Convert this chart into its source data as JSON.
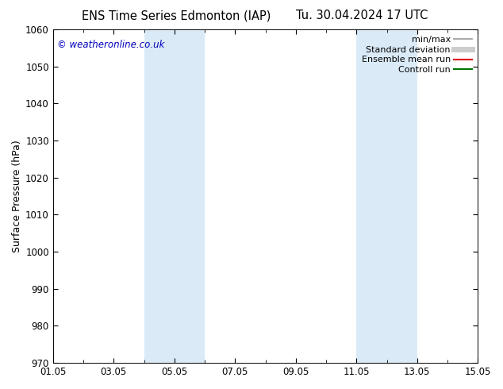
{
  "title_left": "ENS Time Series Edmonton (IAP)",
  "title_right": "Tu. 30.04.2024 17 UTC",
  "ylabel": "Surface Pressure (hPa)",
  "ylim": [
    970,
    1060
  ],
  "yticks": [
    970,
    980,
    990,
    1000,
    1010,
    1020,
    1030,
    1040,
    1050,
    1060
  ],
  "xtick_labels": [
    "01.05",
    "03.05",
    "05.05",
    "07.05",
    "09.05",
    "11.05",
    "13.05",
    "15.05"
  ],
  "xtick_positions": [
    0,
    2,
    4,
    6,
    8,
    10,
    12,
    14
  ],
  "xlim": [
    0,
    14
  ],
  "shaded_bands": [
    {
      "x_start": 3.0,
      "x_end": 5.0,
      "color": "#daeaf7"
    },
    {
      "x_start": 10.0,
      "x_end": 12.0,
      "color": "#daeaf7"
    }
  ],
  "watermark": "© weatheronline.co.uk",
  "watermark_color": "#0000bb",
  "legend_items": [
    {
      "label": "min/max",
      "color": "#999999",
      "lw": 1.2
    },
    {
      "label": "Standard deviation",
      "color": "#cccccc",
      "lw": 5
    },
    {
      "label": "Ensemble mean run",
      "color": "#dd0000",
      "lw": 1.5
    },
    {
      "label": "Controll run",
      "color": "#007700",
      "lw": 1.5
    }
  ],
  "bg_color": "#ffffff",
  "axes_bg_color": "#ffffff",
  "tick_label_fontsize": 8.5,
  "axis_label_fontsize": 9,
  "title_fontsize": 10.5,
  "legend_fontsize": 8
}
